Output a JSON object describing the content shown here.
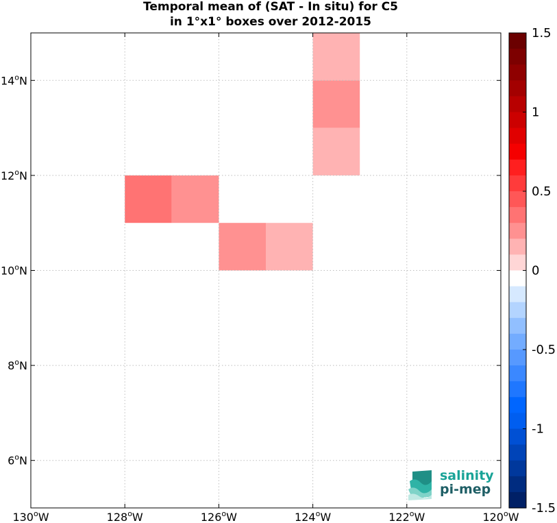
{
  "title_line1": "Temporal mean of (SAT - In situ) for C5",
  "title_line2": "in 1°x1° boxes over 2012-2015",
  "map": {
    "lon_range": [
      -130,
      -120
    ],
    "lat_range": [
      5,
      15
    ],
    "x_ticks": [
      {
        "value": -130,
        "deg": "130",
        "hemi": "W"
      },
      {
        "value": -128,
        "deg": "128",
        "hemi": "W"
      },
      {
        "value": -126,
        "deg": "126",
        "hemi": "W"
      },
      {
        "value": -124,
        "deg": "124",
        "hemi": "W"
      },
      {
        "value": -122,
        "deg": "122",
        "hemi": "W"
      },
      {
        "value": -120,
        "deg": "120",
        "hemi": "W"
      }
    ],
    "y_ticks": [
      {
        "value": 6,
        "deg": "6",
        "hemi": "N"
      },
      {
        "value": 8,
        "deg": "8",
        "hemi": "N"
      },
      {
        "value": 10,
        "deg": "10",
        "hemi": "N"
      },
      {
        "value": 12,
        "deg": "12",
        "hemi": "N"
      },
      {
        "value": 14,
        "deg": "14",
        "hemi": "N"
      }
    ],
    "grid": true,
    "grid_color": "#bdbdbd"
  },
  "chart_data": {
    "type": "heatmap",
    "title": "Temporal mean of (SAT - In situ) for C5 in 1°x1° boxes over 2012-2015",
    "cell_size_deg": 1,
    "cells": [
      {
        "lon_min": -128,
        "lat_min": 11,
        "value": 0.4
      },
      {
        "lon_min": -127,
        "lat_min": 11,
        "value": 0.25
      },
      {
        "lon_min": -126,
        "lat_min": 10,
        "value": 0.25
      },
      {
        "lon_min": -125,
        "lat_min": 10,
        "value": 0.15
      },
      {
        "lon_min": -124,
        "lat_min": 14,
        "value": 0.15
      },
      {
        "lon_min": -124,
        "lat_min": 13,
        "value": 0.25
      },
      {
        "lon_min": -124,
        "lat_min": 12,
        "value": 0.15
      }
    ],
    "colorbar": {
      "range": [
        -1.5,
        1.5
      ],
      "ticks": [
        "1.5",
        "1",
        "0.5",
        "0",
        "-0.5",
        "-1",
        "-1.5"
      ],
      "tick_values": [
        1.5,
        1,
        0.5,
        0,
        -0.5,
        -1,
        -1.5
      ],
      "colors_top_to_bottom": [
        "#6b0000",
        "#7d0000",
        "#8f0000",
        "#a30000",
        "#b80000",
        "#cc0000",
        "#e00000",
        "#f50000",
        "#ff1f1f",
        "#ff3b3b",
        "#ff5757",
        "#ff7373",
        "#ff9191",
        "#ffb3b3",
        "#ffd6d6",
        "#ffffff",
        "#d6e9ff",
        "#b3d4ff",
        "#91bfff",
        "#73acff",
        "#5799ff",
        "#3b88ff",
        "#1f77ff",
        "#0066ff",
        "#005ef0",
        "#0050d4",
        "#0044b8",
        "#00389c",
        "#002c80",
        "#002066"
      ]
    }
  },
  "logo": {
    "line1": "salinity",
    "line2": "pi-mep"
  }
}
